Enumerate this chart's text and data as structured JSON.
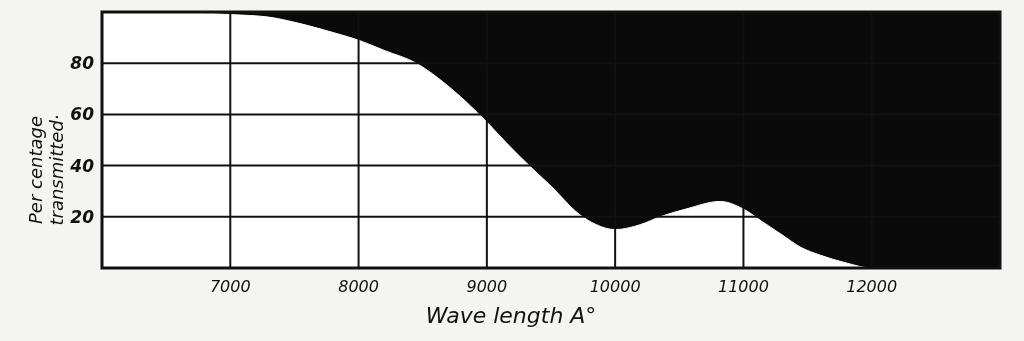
{
  "chart_data": {
    "type": "area",
    "xlabel": "Wave length A°",
    "ylabel": "Per centage transmitted·",
    "x": [
      6000,
      6500,
      7000,
      7300,
      7500,
      7800,
      8000,
      8200,
      8450,
      8700,
      9000,
      9150,
      9330,
      9500,
      9720,
      9850,
      10000,
      10200,
      10350,
      10550,
      10820,
      11000,
      11150,
      11300,
      11450,
      11600,
      11800,
      12000,
      12500,
      13000
    ],
    "series": [
      {
        "color": "#ffffff",
        "values": [
          100,
          100,
          99,
          98,
          96,
          92,
          89,
          85,
          80,
          71,
          57,
          49,
          40,
          32,
          21,
          17,
          15,
          17,
          20,
          23,
          26,
          23,
          18,
          13,
          8,
          5,
          2,
          0,
          0,
          0
        ]
      }
    ],
    "xlim": [
      6000,
      13000
    ],
    "ylim": [
      0,
      100
    ],
    "xticks": [
      {
        "value": 6000,
        "label": null
      },
      7000,
      8000,
      9000,
      10000,
      11000,
      12000,
      {
        "value": 13000,
        "label": null
      }
    ],
    "yticks": [
      {
        "value": 0,
        "label": null
      },
      20,
      40,
      60,
      80,
      {
        "value": 100,
        "label": null
      }
    ],
    "grid": true
  }
}
